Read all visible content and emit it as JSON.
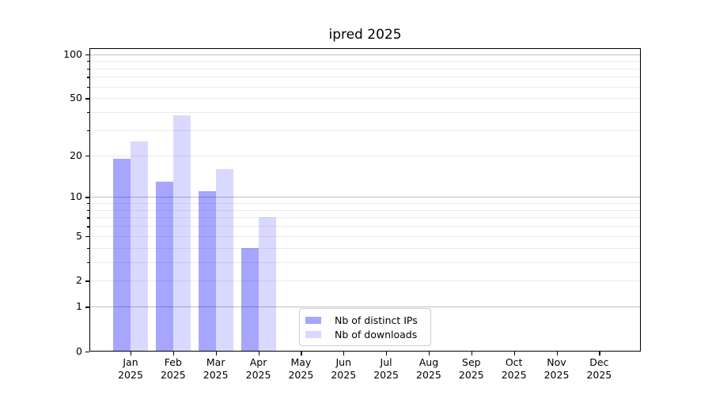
{
  "chart_data": {
    "type": "bar",
    "title": "ipred 2025",
    "year_label": "2025",
    "months": [
      "Jan",
      "Feb",
      "Mar",
      "Apr",
      "May",
      "Jun",
      "Jul",
      "Aug",
      "Sep",
      "Oct",
      "Nov",
      "Dec"
    ],
    "series": [
      {
        "name": "Nb of distinct IPs",
        "color": "#0000ff",
        "alpha": 0.35,
        "values": [
          19,
          13,
          11,
          4,
          null,
          null,
          null,
          null,
          null,
          null,
          null,
          null
        ]
      },
      {
        "name": "Nb of downloads",
        "color": "#0000ff",
        "alpha": 0.15,
        "values": [
          25,
          38,
          16,
          7,
          null,
          null,
          null,
          null,
          null,
          null,
          null,
          null
        ]
      }
    ],
    "yscale": "log1p",
    "ylim": [
      0,
      110
    ],
    "ytick_labels": [
      0,
      1,
      2,
      5,
      10,
      20,
      50,
      100
    ],
    "y_major_gridlines": [
      1,
      10,
      100
    ],
    "y_minor_gridlines": [
      2,
      3,
      4,
      5,
      6,
      7,
      8,
      9,
      20,
      30,
      40,
      50,
      60,
      70,
      80,
      90
    ],
    "xlabel": "",
    "ylabel": "",
    "grid": true,
    "legend_position": "lower center"
  }
}
